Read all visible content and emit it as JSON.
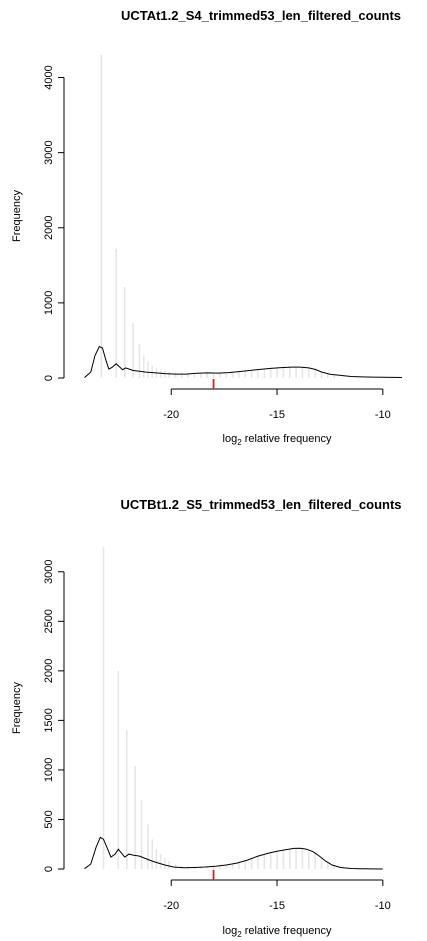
{
  "chart_data": [
    {
      "type": "histogram",
      "title": "UCTAt1.2_S4_trimmed53_len_filtered_counts",
      "xlabel": {
        "prefix": "log",
        "sub": "2",
        "suffix": " relative frequency"
      },
      "ylabel": "Frequency",
      "xlim": [
        -24.5,
        -9
      ],
      "ylim": [
        0,
        4300
      ],
      "x_ticks": [
        -20,
        -15,
        -10
      ],
      "y_ticks": [
        0,
        1000,
        2000,
        3000,
        4000
      ],
      "grid": false,
      "marker_x": -18,
      "marker_color": "#e31a1c",
      "bar_color": "#e6e6e6",
      "line_color": "#000000",
      "bars": [
        {
          "x": -23.3,
          "y": 4300
        },
        {
          "x": -22.6,
          "y": 1720
        },
        {
          "x": -22.2,
          "y": 1210
        },
        {
          "x": -21.8,
          "y": 730
        },
        {
          "x": -21.5,
          "y": 450
        },
        {
          "x": -21.3,
          "y": 300
        },
        {
          "x": -21.1,
          "y": 220
        },
        {
          "x": -20.9,
          "y": 160
        },
        {
          "x": -20.7,
          "y": 130
        },
        {
          "x": -20.5,
          "y": 110
        },
        {
          "x": -20.3,
          "y": 95
        },
        {
          "x": -20.1,
          "y": 85
        },
        {
          "x": -19.8,
          "y": 75
        },
        {
          "x": -19.5,
          "y": 70
        },
        {
          "x": -19.2,
          "y": 65
        },
        {
          "x": -18.9,
          "y": 65
        },
        {
          "x": -18.6,
          "y": 65
        },
        {
          "x": -18.3,
          "y": 65
        },
        {
          "x": -18.0,
          "y": 65
        },
        {
          "x": -17.7,
          "y": 70
        },
        {
          "x": -17.4,
          "y": 75
        },
        {
          "x": -17.1,
          "y": 80
        },
        {
          "x": -16.8,
          "y": 85
        },
        {
          "x": -16.5,
          "y": 95
        },
        {
          "x": -16.2,
          "y": 105
        },
        {
          "x": -15.9,
          "y": 115
        },
        {
          "x": -15.6,
          "y": 125
        },
        {
          "x": -15.3,
          "y": 135
        },
        {
          "x": -15.0,
          "y": 145
        },
        {
          "x": -14.7,
          "y": 150
        },
        {
          "x": -14.4,
          "y": 155
        },
        {
          "x": -14.1,
          "y": 155
        },
        {
          "x": -13.8,
          "y": 150
        },
        {
          "x": -13.5,
          "y": 140
        },
        {
          "x": -13.2,
          "y": 120
        },
        {
          "x": -12.9,
          "y": 90
        },
        {
          "x": -12.6,
          "y": 60
        },
        {
          "x": -12.3,
          "y": 40
        }
      ],
      "density": [
        [
          -24.1,
          5
        ],
        [
          -23.8,
          80
        ],
        [
          -23.6,
          300
        ],
        [
          -23.4,
          420
        ],
        [
          -23.25,
          400
        ],
        [
          -23.1,
          250
        ],
        [
          -22.95,
          120
        ],
        [
          -22.8,
          140
        ],
        [
          -22.6,
          190
        ],
        [
          -22.45,
          150
        ],
        [
          -22.3,
          110
        ],
        [
          -22.15,
          135
        ],
        [
          -22.0,
          120
        ],
        [
          -21.8,
          100
        ],
        [
          -21.5,
          90
        ],
        [
          -21.2,
          78
        ],
        [
          -20.8,
          70
        ],
        [
          -20.3,
          58
        ],
        [
          -19.8,
          52
        ],
        [
          -19.3,
          52
        ],
        [
          -18.8,
          62
        ],
        [
          -18.3,
          68
        ],
        [
          -17.8,
          65
        ],
        [
          -17.3,
          72
        ],
        [
          -16.8,
          85
        ],
        [
          -16.3,
          100
        ],
        [
          -15.8,
          115
        ],
        [
          -15.3,
          128
        ],
        [
          -14.8,
          138
        ],
        [
          -14.3,
          145
        ],
        [
          -13.9,
          145
        ],
        [
          -13.5,
          135
        ],
        [
          -13.2,
          115
        ],
        [
          -12.9,
          80
        ],
        [
          -12.5,
          50
        ],
        [
          -12.0,
          35
        ],
        [
          -11.5,
          20
        ],
        [
          -11.0,
          15
        ],
        [
          -10.5,
          12
        ],
        [
          -10.0,
          10
        ],
        [
          -9.5,
          8
        ],
        [
          -9.1,
          6
        ]
      ]
    },
    {
      "type": "histogram",
      "title": "UCTBt1.2_S5_trimmed53_len_filtered_counts",
      "xlabel": {
        "prefix": "log",
        "sub": "2",
        "suffix": " relative frequency"
      },
      "ylabel": "Frequency",
      "xlim": [
        -24.5,
        -9
      ],
      "ylim": [
        0,
        3250
      ],
      "x_ticks": [
        -20,
        -15,
        -10
      ],
      "y_ticks": [
        0,
        500,
        1000,
        1500,
        2000,
        2500,
        3000
      ],
      "grid": false,
      "marker_x": -18,
      "marker_color": "#e31a1c",
      "bar_color": "#e6e6e6",
      "line_color": "#000000",
      "bars": [
        {
          "x": -23.2,
          "y": 3250
        },
        {
          "x": -22.5,
          "y": 2000
        },
        {
          "x": -22.1,
          "y": 1400
        },
        {
          "x": -21.7,
          "y": 1040
        },
        {
          "x": -21.4,
          "y": 700
        },
        {
          "x": -21.1,
          "y": 450
        },
        {
          "x": -20.9,
          "y": 300
        },
        {
          "x": -20.7,
          "y": 200
        },
        {
          "x": -20.5,
          "y": 150
        },
        {
          "x": -20.3,
          "y": 110
        },
        {
          "x": -20.1,
          "y": 80
        },
        {
          "x": -19.8,
          "y": 50
        },
        {
          "x": -19.5,
          "y": 35
        },
        {
          "x": -19.2,
          "y": 28
        },
        {
          "x": -18.9,
          "y": 25
        },
        {
          "x": -18.6,
          "y": 25
        },
        {
          "x": -18.3,
          "y": 25
        },
        {
          "x": -18.0,
          "y": 30
        },
        {
          "x": -17.7,
          "y": 35
        },
        {
          "x": -17.4,
          "y": 45
        },
        {
          "x": -17.1,
          "y": 55
        },
        {
          "x": -16.8,
          "y": 70
        },
        {
          "x": -16.5,
          "y": 90
        },
        {
          "x": -16.2,
          "y": 110
        },
        {
          "x": -15.9,
          "y": 130
        },
        {
          "x": -15.6,
          "y": 150
        },
        {
          "x": -15.3,
          "y": 170
        },
        {
          "x": -15.0,
          "y": 185
        },
        {
          "x": -14.7,
          "y": 195
        },
        {
          "x": -14.4,
          "y": 205
        },
        {
          "x": -14.1,
          "y": 210
        },
        {
          "x": -13.8,
          "y": 205
        },
        {
          "x": -13.5,
          "y": 190
        },
        {
          "x": -13.2,
          "y": 165
        },
        {
          "x": -12.9,
          "y": 120
        },
        {
          "x": -12.6,
          "y": 70
        },
        {
          "x": -12.3,
          "y": 30
        }
      ],
      "density": [
        [
          -24.1,
          3
        ],
        [
          -23.8,
          50
        ],
        [
          -23.55,
          220
        ],
        [
          -23.35,
          320
        ],
        [
          -23.2,
          300
        ],
        [
          -23.0,
          200
        ],
        [
          -22.85,
          120
        ],
        [
          -22.65,
          150
        ],
        [
          -22.5,
          200
        ],
        [
          -22.35,
          160
        ],
        [
          -22.2,
          120
        ],
        [
          -22.0,
          150
        ],
        [
          -21.8,
          140
        ],
        [
          -21.5,
          130
        ],
        [
          -21.2,
          105
        ],
        [
          -20.9,
          80
        ],
        [
          -20.6,
          60
        ],
        [
          -20.3,
          40
        ],
        [
          -19.9,
          20
        ],
        [
          -19.4,
          12
        ],
        [
          -18.9,
          15
        ],
        [
          -18.4,
          20
        ],
        [
          -17.9,
          28
        ],
        [
          -17.4,
          40
        ],
        [
          -16.9,
          60
        ],
        [
          -16.4,
          90
        ],
        [
          -15.9,
          130
        ],
        [
          -15.4,
          160
        ],
        [
          -15.0,
          180
        ],
        [
          -14.6,
          195
        ],
        [
          -14.2,
          208
        ],
        [
          -13.9,
          210
        ],
        [
          -13.6,
          200
        ],
        [
          -13.3,
          175
        ],
        [
          -13.0,
          130
        ],
        [
          -12.7,
          80
        ],
        [
          -12.4,
          40
        ],
        [
          -12.0,
          15
        ],
        [
          -11.5,
          5
        ],
        [
          -11.0,
          2
        ],
        [
          -10.0,
          0
        ]
      ]
    }
  ]
}
